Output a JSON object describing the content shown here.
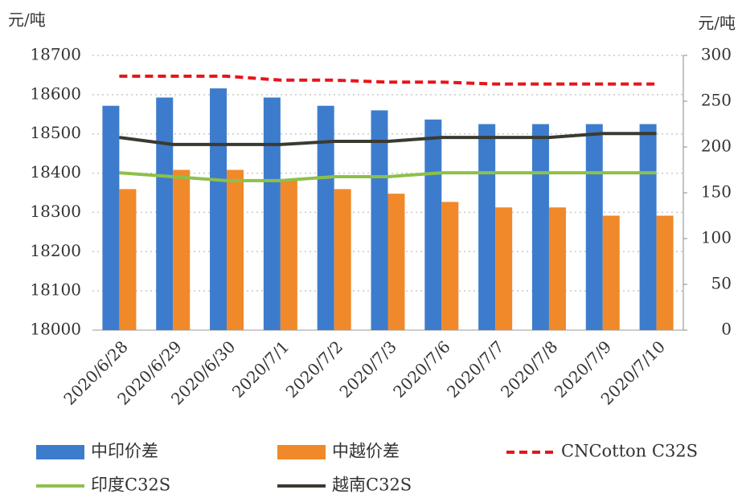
{
  "chart_data": {
    "type": "bar_line",
    "ylabel": "元/吨",
    "y2label": "元/吨",
    "categories": [
      "2020/6/28",
      "2020/6/29",
      "2020/6/30",
      "2020/7/1",
      "2020/7/2",
      "2020/7/3",
      "2020/7/6",
      "2020/7/7",
      "2020/7/8",
      "2020/7/9",
      "2020/7/10"
    ],
    "ylim": [
      18000,
      18700
    ],
    "yticks": [
      18000,
      18100,
      18200,
      18300,
      18400,
      18500,
      18600,
      18700
    ],
    "y2lim": [
      0,
      300
    ],
    "y2ticks": [
      0,
      50,
      100,
      150,
      200,
      250,
      300
    ],
    "grid": true,
    "series": [
      {
        "name": "中印价差",
        "kind": "bar",
        "axis": "y2",
        "color": "#3d7ccc",
        "values": [
          245,
          254,
          264,
          254,
          245,
          240,
          230,
          225,
          225,
          225,
          225
        ]
      },
      {
        "name": "中越价差",
        "kind": "bar",
        "axis": "y2",
        "color": "#f0892a",
        "values": [
          154,
          175,
          175,
          165,
          154,
          149,
          140,
          134,
          134,
          125,
          125
        ]
      },
      {
        "name": "CNCotton C32S",
        "kind": "line",
        "dashed": true,
        "color": "#e8141a",
        "values": [
          18647,
          18647,
          18647,
          18637,
          18637,
          18632,
          18632,
          18627,
          18627,
          18627,
          18627
        ]
      },
      {
        "name": "印度C32S",
        "kind": "line",
        "color": "#8dc04a",
        "values": [
          18401,
          18391,
          18381,
          18381,
          18391,
          18391,
          18401,
          18401,
          18401,
          18401,
          18401
        ]
      },
      {
        "name": "越南C32S",
        "kind": "line",
        "color": "#3b3a32",
        "values": [
          18491,
          18473,
          18473,
          18473,
          18481,
          18481,
          18491,
          18491,
          18491,
          18501,
          18501
        ]
      }
    ]
  }
}
